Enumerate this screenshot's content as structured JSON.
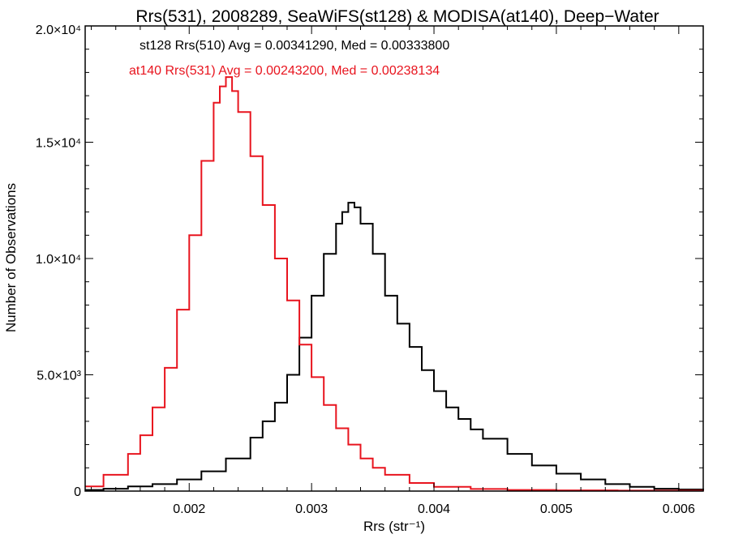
{
  "chart_data": {
    "type": "line",
    "title": "Rrs(531), 2008289, SeaWiFS(st128) & MODISA(at140), Deep−Water",
    "xlabel": "Rrs (str⁻¹)",
    "ylabel": "Number of Observations",
    "xlim": [
      0.00115,
      0.0062
    ],
    "ylim": [
      0,
      20000
    ],
    "x_ticks": [
      0.002,
      0.003,
      0.004,
      0.005,
      0.006
    ],
    "x_tick_labels": [
      "0.002",
      "0.003",
      "0.004",
      "0.005",
      "0.006"
    ],
    "y_ticks": [
      0,
      5000,
      10000,
      15000,
      20000
    ],
    "y_tick_labels": [
      "0",
      "5.0×10³",
      "1.0×10⁴",
      "1.5×10⁴",
      "2.0×10⁴"
    ],
    "legend": [
      {
        "text": "st128 Rrs(510) Avg = 0.00341290, Med = 0.00333800",
        "color": "#000000"
      },
      {
        "text": "at140 Rrs(531) Avg = 0.00243200, Med = 0.00238134",
        "color": "#e8141e"
      }
    ],
    "series": [
      {
        "color": "#000000",
        "x": [
          0.00115,
          0.0013,
          0.0015,
          0.0017,
          0.0019,
          0.0021,
          0.0023,
          0.0025,
          0.0026,
          0.0027,
          0.0028,
          0.0029,
          0.003,
          0.0031,
          0.0032,
          0.00325,
          0.0033,
          0.00335,
          0.0034,
          0.0035,
          0.0036,
          0.0037,
          0.0038,
          0.0039,
          0.004,
          0.0041,
          0.0042,
          0.0043,
          0.0044,
          0.0046,
          0.0048,
          0.005,
          0.0052,
          0.0054,
          0.0056,
          0.0058,
          0.006,
          0.0062
        ],
        "y": [
          50,
          100,
          200,
          300,
          500,
          850,
          1400,
          2300,
          3000,
          3800,
          5000,
          6600,
          8400,
          10200,
          11500,
          12000,
          12400,
          12200,
          11500,
          10200,
          8400,
          7200,
          6200,
          5200,
          4300,
          3600,
          3100,
          2650,
          2250,
          1600,
          1100,
          750,
          500,
          300,
          180,
          100,
          70,
          50
        ]
      },
      {
        "color": "#e8141e",
        "x": [
          0.00115,
          0.0013,
          0.0015,
          0.0016,
          0.0017,
          0.0018,
          0.0019,
          0.002,
          0.0021,
          0.0022,
          0.00225,
          0.0023,
          0.00235,
          0.0024,
          0.0025,
          0.0026,
          0.0027,
          0.0028,
          0.0029,
          0.003,
          0.0031,
          0.0032,
          0.0033,
          0.0034,
          0.0035,
          0.0036,
          0.0038,
          0.004,
          0.0043,
          0.0046,
          0.005,
          0.0055,
          0.0062
        ],
        "y": [
          200,
          700,
          1600,
          2400,
          3600,
          5300,
          7800,
          11000,
          14200,
          16700,
          17400,
          17800,
          17200,
          16300,
          14400,
          12300,
          10000,
          8200,
          6300,
          4900,
          3700,
          2700,
          2000,
          1400,
          1000,
          700,
          350,
          180,
          90,
          50,
          30,
          20,
          10
        ]
      }
    ]
  }
}
